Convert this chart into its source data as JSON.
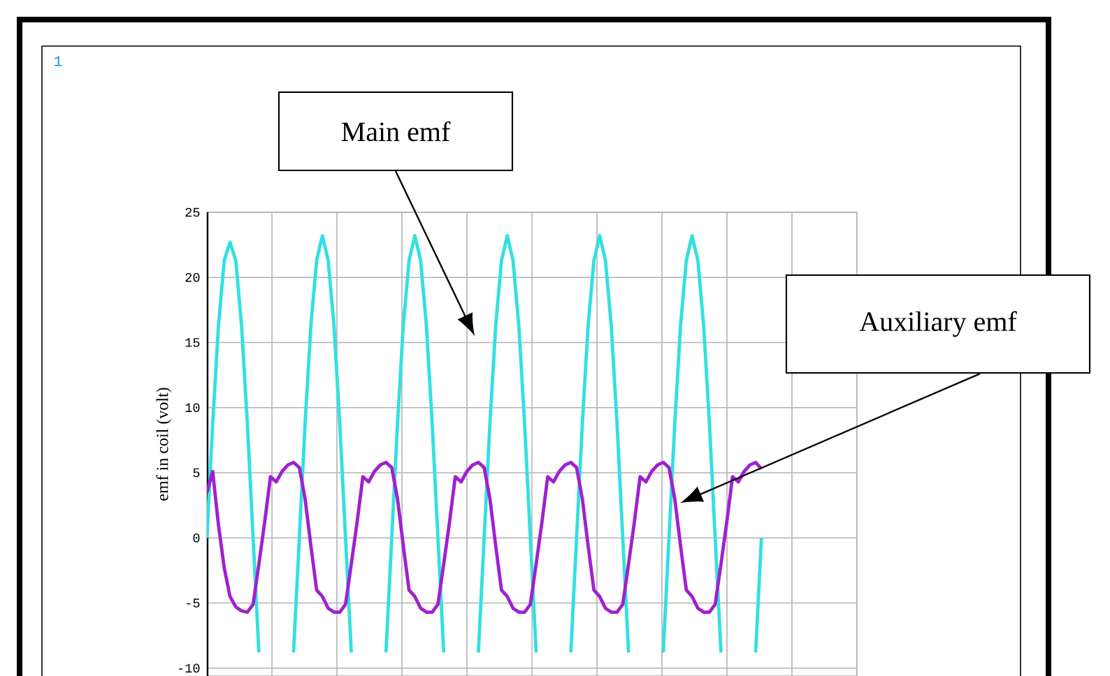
{
  "chart_data": {
    "type": "line",
    "ylabel": "emf in coil (volt)",
    "categories": [
      null,
      null,
      null,
      null,
      null,
      null,
      null,
      null,
      null,
      null,
      null,
      null,
      null,
      null,
      null,
      null,
      null,
      null,
      null,
      null,
      null,
      null,
      null,
      null,
      null,
      null,
      null,
      null,
      null,
      null,
      null,
      null,
      null,
      null,
      null,
      null,
      null,
      null,
      null,
      null,
      null,
      null,
      null,
      null,
      null,
      null,
      null,
      null,
      null,
      null,
      null,
      null,
      null,
      null,
      null,
      null,
      null,
      null,
      null,
      null,
      null,
      null,
      null,
      null,
      null,
      null,
      null,
      null,
      null,
      null,
      null,
      null,
      null,
      null,
      null,
      null,
      null,
      null,
      null,
      null,
      null,
      null,
      null,
      null,
      null,
      null,
      null,
      null,
      null,
      null,
      null,
      null,
      null,
      null,
      null,
      null,
      null
    ],
    "ylim": [
      -10.6,
      25
    ],
    "yticks": [
      -10,
      -5,
      0,
      5,
      10,
      15,
      20,
      25
    ],
    "tick_labels": "y",
    "grid": true,
    "series": [
      {
        "color": "#33e0e0",
        "values": [
          0,
          8.8,
          16.3,
          21.3,
          22.7,
          21.3,
          16.3,
          8.8,
          0,
          -8.8,
          null,
          null,
          null,
          null,
          null,
          -8.8,
          0,
          8.8,
          16.3,
          21.3,
          23.2,
          21.3,
          16.3,
          8.8,
          0,
          -8.8,
          null,
          null,
          null,
          null,
          null,
          -8.8,
          0,
          8.8,
          16.3,
          21.3,
          23.2,
          21.3,
          16.3,
          8.8,
          0,
          -8.8,
          null,
          null,
          null,
          null,
          null,
          -8.8,
          0,
          8.8,
          16.3,
          21.3,
          23.2,
          21.3,
          16.3,
          8.8,
          0,
          -8.8,
          null,
          null,
          null,
          null,
          null,
          -8.8,
          0,
          8.8,
          16.3,
          21.3,
          23.2,
          21.3,
          16.3,
          8.8,
          0,
          -8.8,
          null,
          null,
          null,
          null,
          null,
          -8.8,
          0,
          8.8,
          16.3,
          21.3,
          23.2,
          21.3,
          16.3,
          8.8,
          0,
          -8.8,
          null,
          null,
          null,
          null,
          null,
          -8.8,
          0
        ]
      },
      {
        "color": "#a020d0",
        "values": [
          3.5,
          5.1,
          1.0,
          -2.3,
          -4.5,
          -5.3,
          -5.6,
          -5.7,
          -5.1,
          -2.0,
          1.2,
          4.7,
          4.3,
          5.1,
          5.6,
          5.8,
          5.4,
          3.0,
          -0.6,
          -4.0,
          -4.5,
          -5.4,
          -5.7,
          -5.7,
          -5.1,
          -2.0,
          1.2,
          4.7,
          4.3,
          5.1,
          5.6,
          5.8,
          5.4,
          3.0,
          -0.6,
          -4.0,
          -4.5,
          -5.4,
          -5.7,
          -5.7,
          -5.1,
          -2.0,
          1.2,
          4.7,
          4.3,
          5.1,
          5.6,
          5.8,
          5.4,
          3.0,
          -0.6,
          -4.0,
          -4.5,
          -5.4,
          -5.7,
          -5.7,
          -5.1,
          -2.0,
          1.2,
          4.7,
          4.3,
          5.1,
          5.6,
          5.8,
          5.4,
          3.0,
          -0.6,
          -4.0,
          -4.5,
          -5.4,
          -5.7,
          -5.7,
          -5.1,
          -2.0,
          1.2,
          4.7,
          4.3,
          5.1,
          5.6,
          5.8,
          5.4,
          3.0,
          -0.6,
          -4.0,
          -4.5,
          -5.4,
          -5.7,
          -5.7,
          -5.1,
          -2.0,
          1.2,
          4.7,
          4.3,
          5.1,
          5.6,
          5.8,
          5.3
        ]
      }
    ],
    "annotations": [
      "Main emf",
      "Auxiliary emf",
      "1"
    ]
  }
}
